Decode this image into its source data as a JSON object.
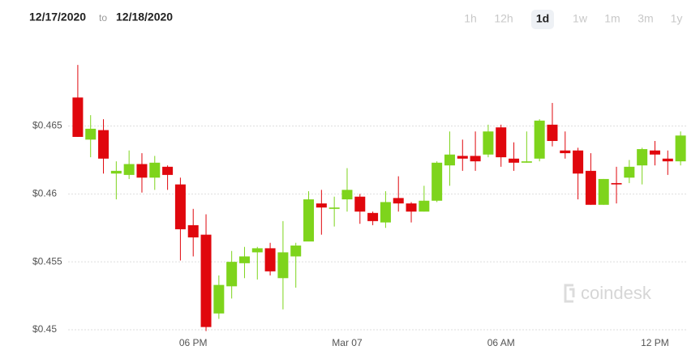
{
  "header": {
    "start_date": "12/17/2020",
    "separator": "to",
    "end_date": "12/18/2020"
  },
  "range_tabs": [
    {
      "label": "1h"
    },
    {
      "label": "12h"
    },
    {
      "label": "1d",
      "active": true
    },
    {
      "label": "1w"
    },
    {
      "label": "1m"
    },
    {
      "label": "3m"
    },
    {
      "label": "1y"
    }
  ],
  "watermark": "coindesk",
  "chart_data": {
    "type": "candlestick",
    "up_color": "#7ed41c",
    "down_color": "#e0070d",
    "grid": true,
    "categories": [
      null,
      null,
      null,
      null,
      null,
      null,
      null,
      null,
      null,
      "06 PM",
      null,
      null,
      null,
      null,
      null,
      null,
      null,
      null,
      null,
      null,
      null,
      "Mar 07",
      null,
      null,
      null,
      null,
      null,
      null,
      null,
      null,
      null,
      null,
      null,
      "06 AM",
      null,
      null,
      null,
      null,
      null,
      null,
      null,
      null,
      null,
      null,
      null,
      "12 PM",
      null,
      null
    ],
    "open": [
      0.4671,
      0.464,
      0.4647,
      0.4615,
      0.4614,
      0.4622,
      0.4612,
      0.462,
      0.4607,
      0.4577,
      0.457,
      0.4512,
      0.4532,
      0.4549,
      0.4557,
      0.456,
      0.4538,
      0.4554,
      0.4565,
      0.4593,
      0.4589,
      0.4596,
      0.4598,
      0.4586,
      0.4579,
      0.4597,
      0.4593,
      0.4587,
      0.4595,
      0.4621,
      0.4628,
      0.4628,
      0.4629,
      0.4649,
      0.4626,
      0.4623,
      0.4626,
      0.4651,
      0.4632,
      0.4632,
      0.4617,
      0.4592,
      0.4608,
      0.4612,
      0.4621,
      0.4632,
      0.4626,
      0.4624
    ],
    "high": [
      0.4695,
      0.4658,
      0.4655,
      0.4624,
      0.4632,
      0.463,
      0.4628,
      0.4621,
      0.4612,
      0.4589,
      0.4585,
      0.454,
      0.4558,
      0.4561,
      0.4561,
      0.4564,
      0.458,
      0.4564,
      0.4602,
      0.4603,
      0.4598,
      0.4619,
      0.46,
      0.4587,
      0.4602,
      0.4613,
      0.4594,
      0.4606,
      0.4624,
      0.4646,
      0.464,
      0.4646,
      0.4651,
      0.4651,
      0.4638,
      0.4646,
      0.4655,
      0.4667,
      0.4646,
      0.4634,
      0.463,
      0.4611,
      0.462,
      0.4625,
      0.4634,
      0.4639,
      0.4632,
      0.4646
    ],
    "low": [
      0.4642,
      0.4627,
      0.4615,
      0.4596,
      0.4611,
      0.4601,
      0.4603,
      0.4603,
      0.4551,
      0.4554,
      0.4499,
      0.4508,
      0.4523,
      0.4538,
      0.4537,
      0.454,
      0.4515,
      0.4531,
      0.4565,
      0.457,
      0.4576,
      0.4587,
      0.4578,
      0.4577,
      0.4575,
      0.4587,
      0.4579,
      0.4587,
      0.4594,
      0.4606,
      0.4617,
      0.4617,
      0.4627,
      0.462,
      0.4617,
      0.4623,
      0.4624,
      0.4635,
      0.4626,
      0.4596,
      0.4592,
      0.4592,
      0.4593,
      0.4608,
      0.4607,
      0.4621,
      0.4614,
      0.4621
    ],
    "close": [
      0.4642,
      0.4648,
      0.4626,
      0.4617,
      0.4622,
      0.4612,
      0.4623,
      0.4614,
      0.4574,
      0.4568,
      0.4502,
      0.4533,
      0.455,
      0.4554,
      0.456,
      0.4543,
      0.4557,
      0.4562,
      0.4596,
      0.459,
      0.459,
      0.4603,
      0.4587,
      0.458,
      0.4594,
      0.4593,
      0.4587,
      0.4595,
      0.4623,
      0.4629,
      0.4626,
      0.4624,
      0.4646,
      0.4627,
      0.4623,
      0.4624,
      0.4654,
      0.4639,
      0.463,
      0.4615,
      0.4592,
      0.4611,
      0.4607,
      0.462,
      0.4633,
      0.4629,
      0.4624,
      0.4643
    ],
    "ylim": [
      0.4497,
      0.4707
    ],
    "yticks": [
      {
        "value": 0.45,
        "label": "$0.45"
      },
      {
        "value": 0.455,
        "label": "$0.455"
      },
      {
        "value": 0.46,
        "label": "$0.46"
      },
      {
        "value": 0.465,
        "label": "$0.465"
      }
    ]
  }
}
